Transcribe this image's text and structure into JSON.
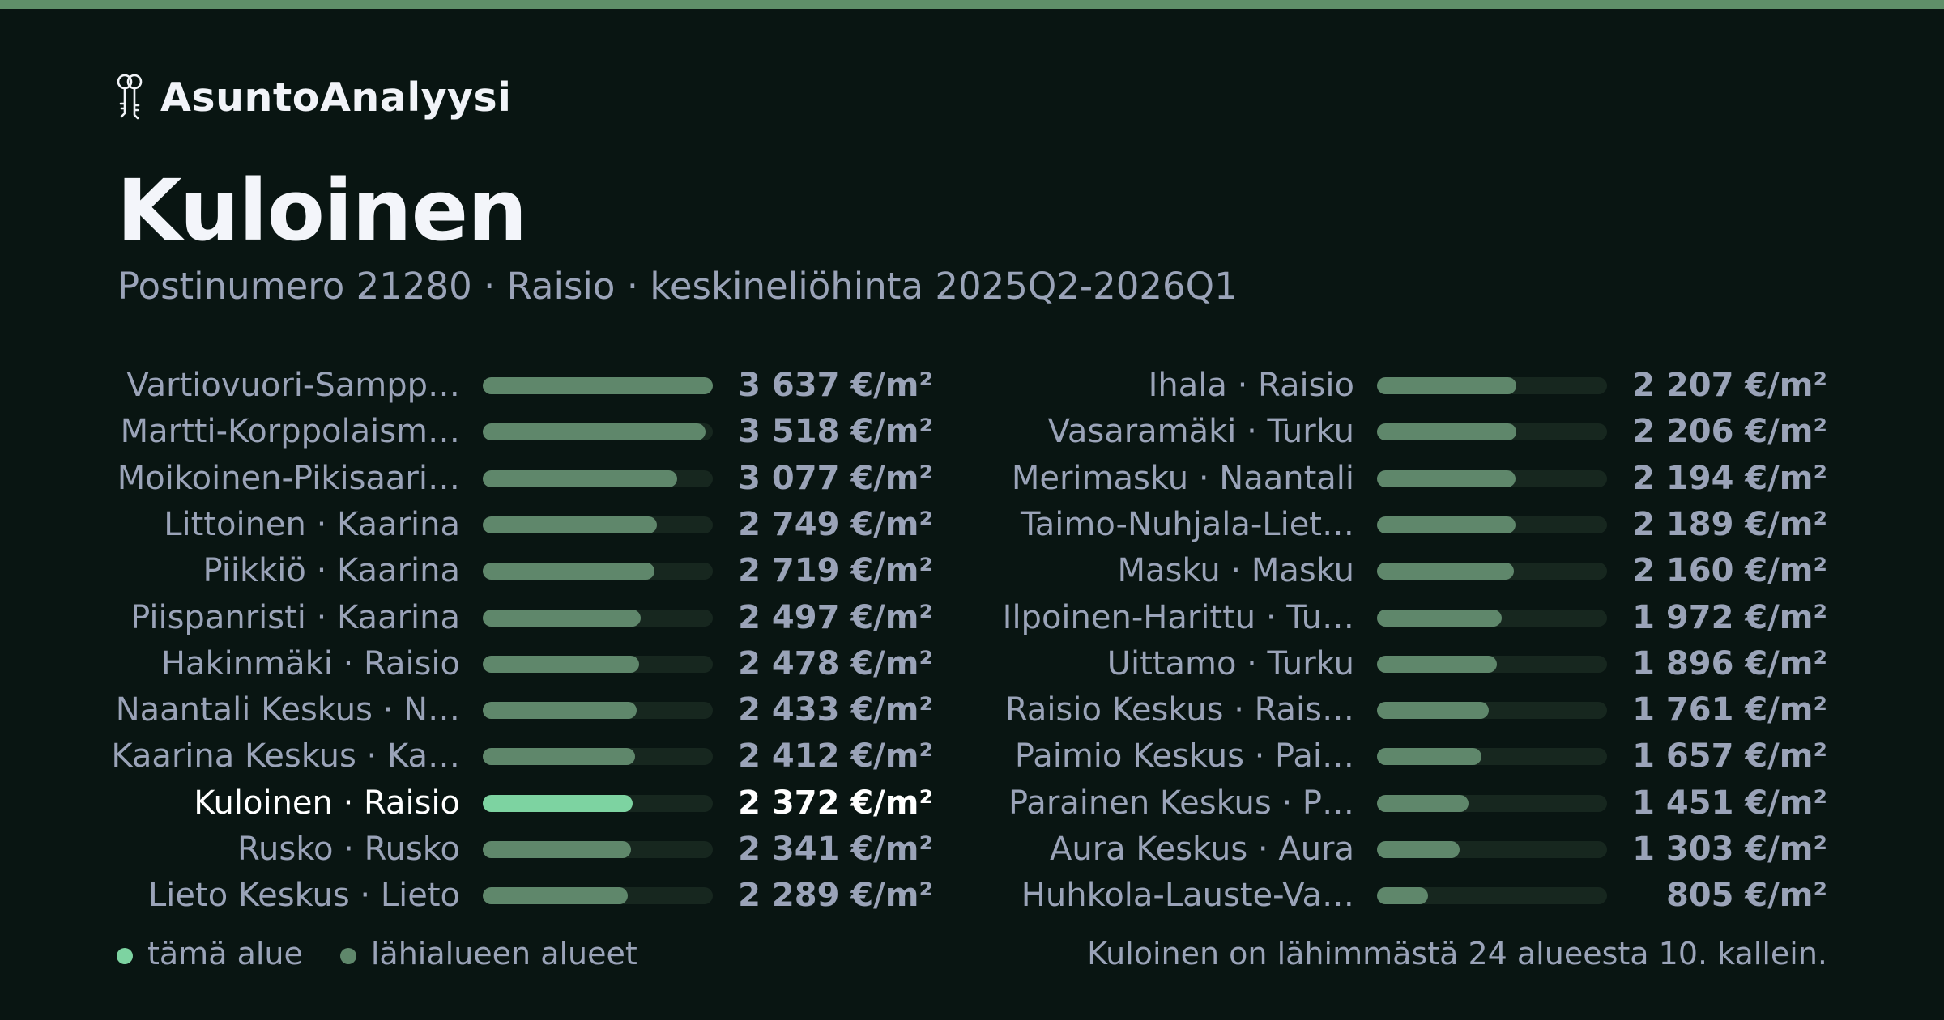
{
  "brand": {
    "name": "AsuntoAnalyysi",
    "icon": "keys-icon"
  },
  "colors": {
    "background": "#091512",
    "accent_bar": "#5f8f69",
    "bar_fill": "#5f876b",
    "bar_current": "#7dd3a1",
    "bar_track": "#17271f",
    "text_muted": "#9aa3b8",
    "text_bright": "#ffffff"
  },
  "chart_data": {
    "type": "bar",
    "orientation": "horizontal",
    "title": "Kuloinen",
    "subtitle": "Postinumero 21280 · Raisio · keskineliöhinta 2025Q2-2026Q1",
    "unit": "€/m²",
    "xlim": [
      0,
      3637
    ],
    "grid": false,
    "highlight_index": 9,
    "columns": [
      [
        {
          "label": "Vartiovuori-Sampp…",
          "value": 3637,
          "display": "3 637 €/m²"
        },
        {
          "label": "Martti-Korppolaism…",
          "value": 3518,
          "display": "3 518 €/m²"
        },
        {
          "label": "Moikoinen-Pikisaari…",
          "value": 3077,
          "display": "3 077 €/m²"
        },
        {
          "label": "Littoinen · Kaarina",
          "value": 2749,
          "display": "2 749 €/m²"
        },
        {
          "label": "Piikkiö · Kaarina",
          "value": 2719,
          "display": "2 719 €/m²"
        },
        {
          "label": "Piispanristi · Kaarina",
          "value": 2497,
          "display": "2 497 €/m²"
        },
        {
          "label": "Hakinmäki · Raisio",
          "value": 2478,
          "display": "2 478 €/m²"
        },
        {
          "label": "Naantali Keskus · N…",
          "value": 2433,
          "display": "2 433 €/m²"
        },
        {
          "label": "Kaarina Keskus · Ka…",
          "value": 2412,
          "display": "2 412 €/m²"
        },
        {
          "label": "Kuloinen · Raisio",
          "value": 2372,
          "display": "2 372 €/m²",
          "current": true
        },
        {
          "label": "Rusko · Rusko",
          "value": 2341,
          "display": "2 341 €/m²"
        },
        {
          "label": "Lieto Keskus · Lieto",
          "value": 2289,
          "display": "2 289 €/m²"
        }
      ],
      [
        {
          "label": "Ihala · Raisio",
          "value": 2207,
          "display": "2 207 €/m²"
        },
        {
          "label": "Vasaramäki · Turku",
          "value": 2206,
          "display": "2 206 €/m²"
        },
        {
          "label": "Merimasku · Naantali",
          "value": 2194,
          "display": "2 194 €/m²"
        },
        {
          "label": "Taimo-Nuhjala-Liet…",
          "value": 2189,
          "display": "2 189 €/m²"
        },
        {
          "label": "Masku · Masku",
          "value": 2160,
          "display": "2 160 €/m²"
        },
        {
          "label": "Ilpoinen-Harittu · Tu…",
          "value": 1972,
          "display": "1 972 €/m²"
        },
        {
          "label": "Uittamo · Turku",
          "value": 1896,
          "display": "1 896 €/m²"
        },
        {
          "label": "Raisio Keskus · Rais…",
          "value": 1761,
          "display": "1 761 €/m²"
        },
        {
          "label": "Paimio Keskus · Pai…",
          "value": 1657,
          "display": "1 657 €/m²"
        },
        {
          "label": "Parainen Keskus · P…",
          "value": 1451,
          "display": "1 451 €/m²"
        },
        {
          "label": "Aura Keskus · Aura",
          "value": 1303,
          "display": "1 303 €/m²"
        },
        {
          "label": "Huhkola-Lauste-Va…",
          "value": 805,
          "display": "805 €/m²"
        }
      ]
    ],
    "legend": {
      "placement": "bottom-left",
      "entries": [
        {
          "label": "tämä alue",
          "color": "#7dd3a1"
        },
        {
          "label": "lähialueen alueet",
          "color": "#5f876b"
        }
      ]
    },
    "annotation": "Kuloinen on lähimmästä 24 alueesta 10. kallein."
  }
}
